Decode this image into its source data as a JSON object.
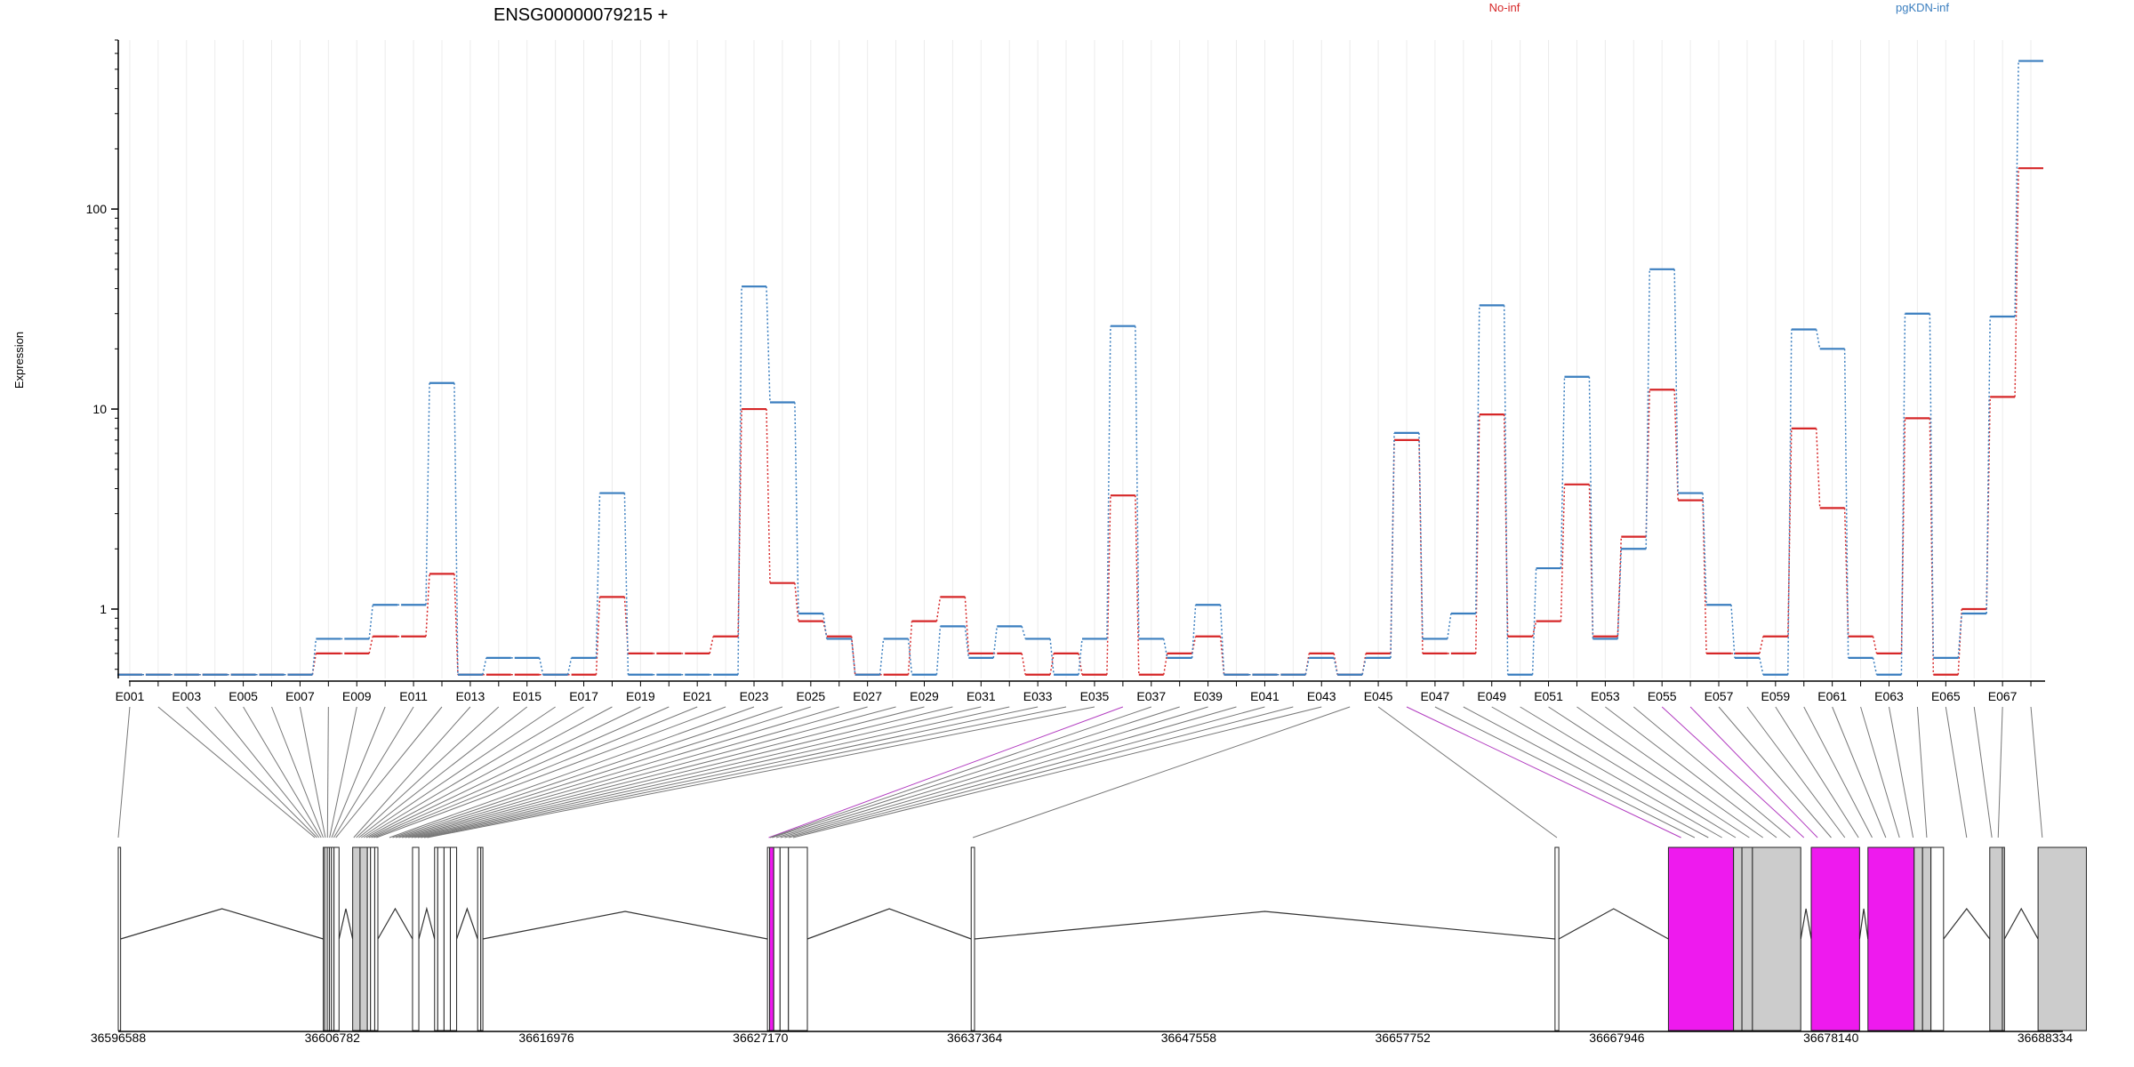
{
  "chart_data": {
    "type": "line",
    "title": "ENSG00000079215 +",
    "ylabel": "Expression",
    "yscale": "log",
    "yticks": [
      1,
      10,
      100
    ],
    "ylim": [
      0.45,
      700
    ],
    "legend_placement": "top",
    "categories": [
      "E001",
      "E002",
      "E003",
      "E004",
      "E005",
      "E006",
      "E007",
      "E008",
      "E009",
      "E010",
      "E011",
      "E012",
      "E013",
      "E014",
      "E015",
      "E016",
      "E017",
      "E018",
      "E019",
      "E020",
      "E021",
      "E022",
      "E023",
      "E024",
      "E025",
      "E026",
      "E027",
      "E028",
      "E029",
      "E030",
      "E031",
      "E032",
      "E033",
      "E034",
      "E035",
      "E036",
      "E037",
      "E038",
      "E039",
      "E040",
      "E041",
      "E042",
      "E043",
      "E044",
      "E045",
      "E046",
      "E047",
      "E048",
      "E049",
      "E050",
      "E051",
      "E052",
      "E053",
      "E054",
      "E055",
      "E056",
      "E057",
      "E058",
      "E059",
      "E060",
      "E061",
      "E062",
      "E063",
      "E064",
      "E065",
      "E066",
      "E067",
      "E068"
    ],
    "xtick_labels": [
      "E001",
      "E003",
      "E005",
      "E007",
      "E009",
      "E011",
      "E013",
      "E015",
      "E017",
      "E019",
      "E021",
      "E023",
      "E025",
      "E027",
      "E029",
      "E031",
      "E033",
      "E035",
      "E037",
      "E039",
      "E041",
      "E043",
      "E045",
      "E047",
      "E049",
      "E051",
      "E053",
      "E055",
      "E057",
      "E059",
      "E061",
      "E063",
      "E065",
      "E067"
    ],
    "series": [
      {
        "name": "No-inf",
        "color": "#d62728",
        "values": [
          0.47,
          0.47,
          0.47,
          0.47,
          0.47,
          0.47,
          0.47,
          0.6,
          0.6,
          0.73,
          0.73,
          1.5,
          0.47,
          0.47,
          0.47,
          0.47,
          0.47,
          1.15,
          0.6,
          0.6,
          0.6,
          0.73,
          10,
          1.35,
          0.87,
          0.73,
          0.47,
          0.47,
          0.87,
          1.15,
          0.6,
          0.6,
          0.47,
          0.6,
          0.47,
          3.7,
          0.47,
          0.6,
          0.73,
          0.47,
          0.47,
          0.47,
          0.6,
          0.47,
          0.6,
          7,
          0.6,
          0.6,
          9.4,
          0.73,
          0.87,
          4.2,
          0.73,
          2.3,
          12.5,
          3.5,
          0.6,
          0.6,
          0.73,
          8,
          3.2,
          0.73,
          0.6,
          9,
          0.47,
          1,
          11.5,
          160
        ]
      },
      {
        "name": "pgKDN-inf",
        "color": "#3a7ebf",
        "values": [
          0.47,
          0.47,
          0.47,
          0.47,
          0.47,
          0.47,
          0.47,
          0.71,
          0.71,
          1.05,
          1.05,
          13.5,
          0.47,
          0.57,
          0.57,
          0.47,
          0.57,
          3.8,
          0.47,
          0.47,
          0.47,
          0.47,
          41,
          10.8,
          0.95,
          0.71,
          0.47,
          0.71,
          0.47,
          0.82,
          0.57,
          0.82,
          0.71,
          0.47,
          0.71,
          26,
          0.71,
          0.57,
          1.05,
          0.47,
          0.47,
          0.47,
          0.57,
          0.47,
          0.57,
          7.6,
          0.71,
          0.95,
          33,
          0.47,
          1.6,
          14.5,
          0.71,
          2,
          50,
          3.8,
          1.05,
          0.57,
          0.47,
          25,
          20,
          0.57,
          0.47,
          30,
          0.57,
          0.95,
          29,
          550
        ]
      }
    ],
    "genome_ticks": [
      "36596588",
      "36606782",
      "36616976",
      "36627170",
      "36637364",
      "36647558",
      "36657752",
      "36667946",
      "36678140",
      "36688334"
    ],
    "genome_range": [
      36596588,
      36688334
    ],
    "gene_model": {
      "exons": [
        {
          "s": 36596588,
          "e": 36596700,
          "c": "w"
        },
        {
          "s": 36606350,
          "e": 36606420,
          "c": "w"
        },
        {
          "s": 36606420,
          "e": 36606540,
          "c": "w"
        },
        {
          "s": 36606540,
          "e": 36606640,
          "c": "w"
        },
        {
          "s": 36606640,
          "e": 36606740,
          "c": "w"
        },
        {
          "s": 36606740,
          "e": 36606860,
          "c": "w"
        },
        {
          "s": 36606860,
          "e": 36607100,
          "c": "w"
        },
        {
          "s": 36607750,
          "e": 36608100,
          "c": "g"
        },
        {
          "s": 36608100,
          "e": 36608450,
          "c": "g"
        },
        {
          "s": 36608450,
          "e": 36608600,
          "c": "w"
        },
        {
          "s": 36608600,
          "e": 36608800,
          "c": "w"
        },
        {
          "s": 36608800,
          "e": 36608950,
          "c": "w"
        },
        {
          "s": 36610600,
          "e": 36610900,
          "c": "w"
        },
        {
          "s": 36611650,
          "e": 36611800,
          "c": "w"
        },
        {
          "s": 36611800,
          "e": 36612100,
          "c": "w"
        },
        {
          "s": 36612100,
          "e": 36612400,
          "c": "w"
        },
        {
          "s": 36612400,
          "e": 36612700,
          "c": "w"
        },
        {
          "s": 36613700,
          "e": 36613850,
          "c": "w"
        },
        {
          "s": 36613850,
          "e": 36613950,
          "c": "w"
        },
        {
          "s": 36627500,
          "e": 36627600,
          "c": "w"
        },
        {
          "s": 36627600,
          "e": 36627800,
          "c": "m"
        },
        {
          "s": 36627800,
          "e": 36628100,
          "c": "w"
        },
        {
          "s": 36628100,
          "e": 36628500,
          "c": "w"
        },
        {
          "s": 36628500,
          "e": 36629400,
          "c": "w"
        },
        {
          "s": 36637200,
          "e": 36637360,
          "c": "w"
        },
        {
          "s": 36665000,
          "e": 36665180,
          "c": "w"
        },
        {
          "s": 36670400,
          "e": 36673500,
          "c": "m"
        },
        {
          "s": 36673500,
          "e": 36673900,
          "c": "g"
        },
        {
          "s": 36673900,
          "e": 36674400,
          "c": "g"
        },
        {
          "s": 36674400,
          "e": 36676700,
          "c": "g"
        },
        {
          "s": 36677200,
          "e": 36679500,
          "c": "m"
        },
        {
          "s": 36679900,
          "e": 36682100,
          "c": "m"
        },
        {
          "s": 36682100,
          "e": 36682500,
          "c": "g"
        },
        {
          "s": 36682500,
          "e": 36682900,
          "c": "g"
        },
        {
          "s": 36682900,
          "e": 36683500,
          "c": "w"
        },
        {
          "s": 36685700,
          "e": 36686300,
          "c": "g"
        },
        {
          "s": 36686300,
          "e": 36686400,
          "c": "g"
        },
        {
          "s": 36688000,
          "e": 36690300,
          "c": "g"
        }
      ],
      "mapping_highlight": [
        "E036",
        "E046",
        "E055",
        "E056"
      ]
    }
  }
}
